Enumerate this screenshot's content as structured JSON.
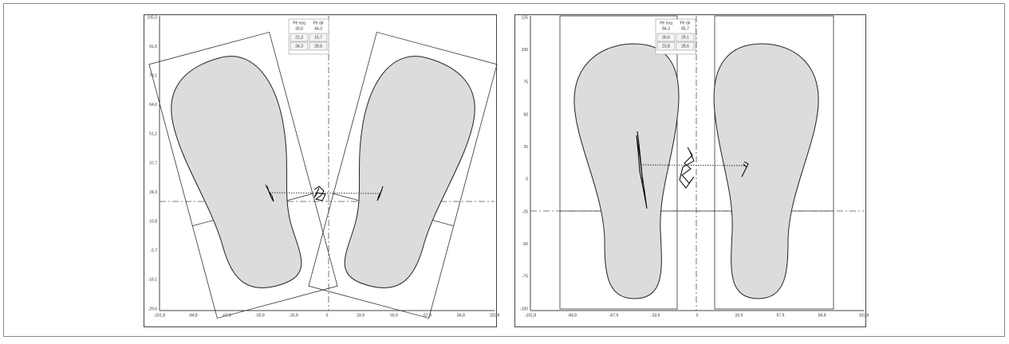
{
  "panels": [
    {
      "legend": {
        "header": [
          "Pé esq",
          "Pé dir"
        ],
        "rows": [
          [
            "30,0",
            "44,3"
          ],
          [
            "21,3",
            "15,7"
          ],
          [
            "34,3",
            "28,8"
          ]
        ]
      },
      "x_ticks": [
        "-101,8",
        "-84,8",
        "-67,9",
        "-50,9",
        "-33,9",
        "0",
        "33,9",
        "50,9",
        "67,9",
        "84,8",
        "101,8"
      ],
      "y_ticks": [
        "105,0",
        "91,6",
        "78,1",
        "64,6",
        "51,2",
        "37,7",
        "24,3",
        "10,8",
        "-2,7",
        "-16,1",
        "-29,6"
      ]
    },
    {
      "legend": {
        "header": [
          "Pé esq",
          "Pé dir"
        ],
        "rows": [
          [
            "84,3",
            "85,7"
          ],
          [
            "30,6",
            "29,1"
          ],
          [
            "23,8",
            "28,6"
          ]
        ]
      },
      "x_ticks": [
        "-101,8",
        "-84,8",
        "-67,9",
        "-33,9",
        "0",
        "33,9",
        "67,9",
        "84,8",
        "101,8"
      ],
      "y_ticks": [
        "125",
        "100",
        "75",
        "50",
        "25",
        "0",
        "-25",
        "-50",
        "-75",
        "-100"
      ]
    }
  ]
}
